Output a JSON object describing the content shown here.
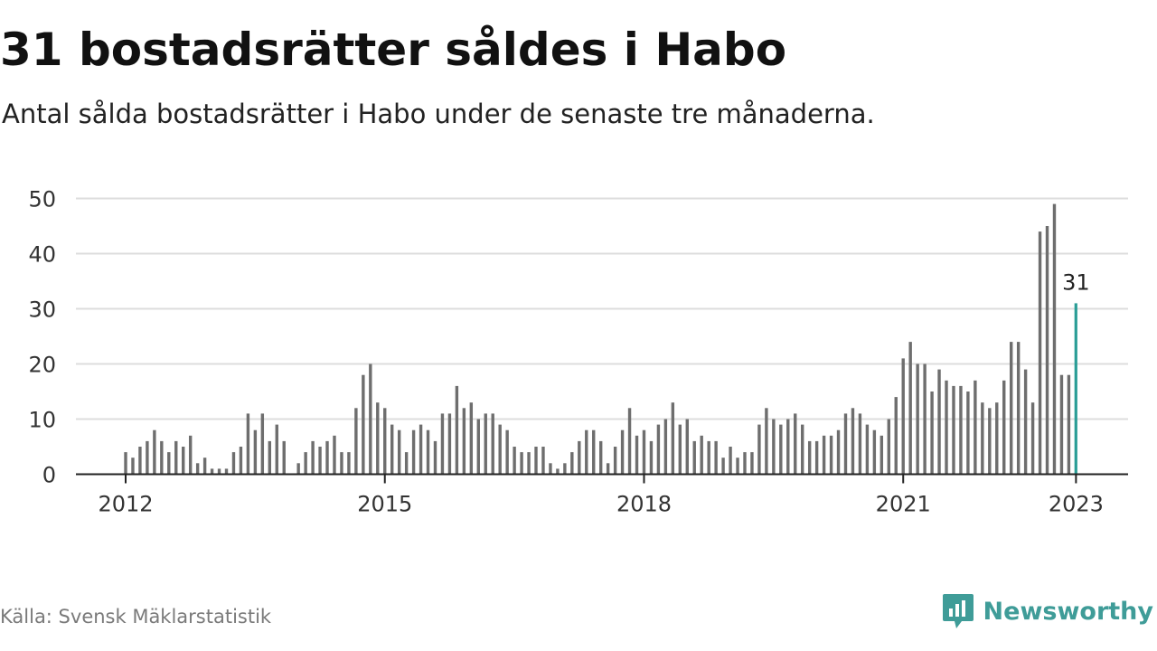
{
  "title": "31 bostadsrätter såldes i Habo",
  "subtitle": "Antal sålda bostadsrätter i Habo under de senaste tre månaderna.",
  "source": "Källa: Svensk Mäklarstatistik",
  "brand": "Newsworthy",
  "colors": {
    "bar": "#6e6e6e",
    "highlight": "#2a9d96",
    "grid": "#dddddd",
    "axis": "#222222",
    "brand": "#3f9c98"
  },
  "chart_data": {
    "type": "bar",
    "title": "31 bostadsrätter såldes i Habo",
    "xlabel": "",
    "ylabel": "",
    "ylim": [
      0,
      50
    ],
    "yticks": [
      0,
      10,
      20,
      30,
      40,
      50
    ],
    "grid": true,
    "x_tick_labels": [
      {
        "label": "2012",
        "month_index": 0
      },
      {
        "label": "2015",
        "month_index": 36
      },
      {
        "label": "2018",
        "month_index": 72
      },
      {
        "label": "2021",
        "month_index": 108
      },
      {
        "label": "2023",
        "month_index": 132
      }
    ],
    "start_year": 2012,
    "highlight_label": "31",
    "values": [
      4,
      3,
      5,
      6,
      8,
      6,
      4,
      6,
      5,
      7,
      2,
      3,
      1,
      1,
      1,
      4,
      5,
      11,
      8,
      11,
      6,
      9,
      6,
      0,
      2,
      4,
      6,
      5,
      6,
      7,
      4,
      4,
      12,
      18,
      20,
      13,
      12,
      9,
      8,
      4,
      8,
      9,
      8,
      6,
      11,
      11,
      16,
      12,
      13,
      10,
      11,
      11,
      9,
      8,
      5,
      4,
      4,
      5,
      5,
      2,
      1,
      2,
      4,
      6,
      8,
      8,
      6,
      2,
      5,
      8,
      12,
      7,
      8,
      6,
      9,
      10,
      13,
      9,
      10,
      6,
      7,
      6,
      6,
      3,
      5,
      3,
      4,
      4,
      9,
      12,
      10,
      9,
      10,
      11,
      9,
      6,
      6,
      7,
      7,
      8,
      11,
      12,
      11,
      9,
      8,
      7,
      10,
      14,
      21,
      24,
      20,
      20,
      15,
      19,
      17,
      16,
      16,
      15,
      17,
      13,
      12,
      13,
      17,
      24,
      24,
      19,
      13,
      44,
      45,
      49,
      18,
      18,
      31
    ]
  }
}
